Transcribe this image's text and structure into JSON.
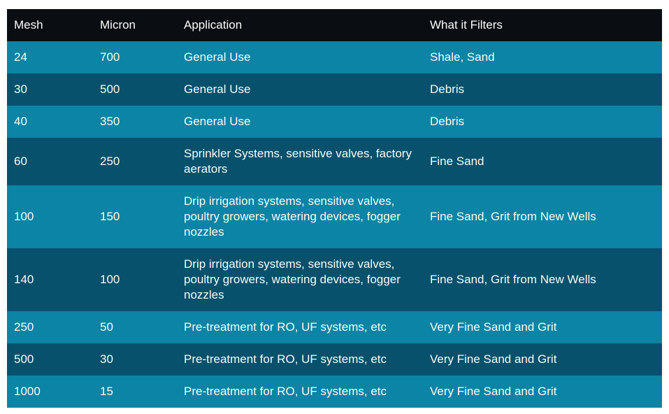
{
  "colors": {
    "header_bg": "#0a0d11",
    "header_text": "#fcfcfc",
    "row_light": "#0b84a5",
    "row_dark": "#07516d",
    "body_text": "#fbfcf5",
    "page_bg": "#ffffff"
  },
  "chart_data": {
    "type": "table",
    "columns": [
      "Mesh",
      "Micron",
      "Application",
      "What it Filters"
    ],
    "rows": [
      [
        "24",
        "700",
        "General Use",
        "Shale, Sand"
      ],
      [
        "30",
        "500",
        "General Use",
        "Debris"
      ],
      [
        "40",
        "350",
        "General Use",
        "Debris"
      ],
      [
        "60",
        "250",
        "Sprinkler Systems, sensitive valves, factory aerators",
        "Fine Sand"
      ],
      [
        "100",
        "150",
        "Drip irrigation systems, sensitive valves, poultry growers, watering devices, fogger nozzles",
        "Fine Sand, Grit from New Wells"
      ],
      [
        "140",
        "100",
        "Drip irrigation systems, sensitive valves, poultry growers, watering devices, fogger nozzles",
        "Fine Sand, Grit from New Wells"
      ],
      [
        "250",
        "50",
        "Pre-treatment for RO, UF systems, etc",
        "Very Fine Sand and Grit"
      ],
      [
        "500",
        "30",
        "Pre-treatment for RO, UF systems, etc",
        "Very Fine Sand and Grit"
      ],
      [
        "1000",
        "15",
        "Pre-treatment for RO, UF systems, etc",
        "Very Fine Sand and Grit"
      ]
    ]
  }
}
